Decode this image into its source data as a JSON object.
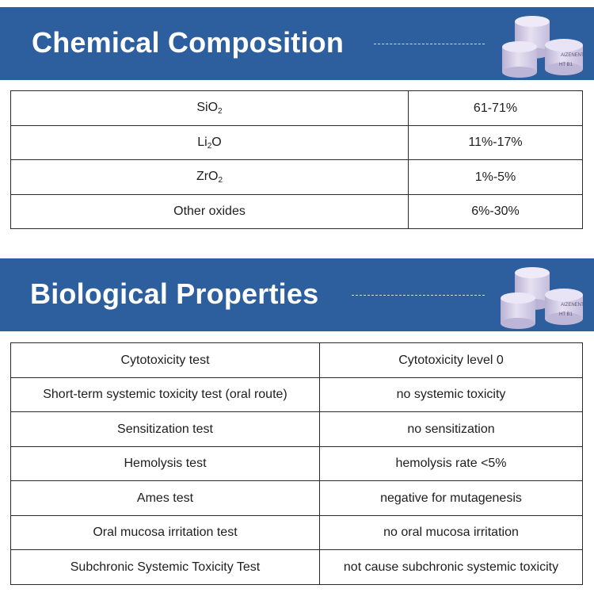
{
  "chemical": {
    "title": "Chemical Composition",
    "puck_label": "AIZENENT",
    "puck_shade": "HT B1",
    "rows": [
      {
        "formula": "SiO",
        "sub": "2",
        "tail": "",
        "value": "61-71%"
      },
      {
        "formula": "Li",
        "sub": "2",
        "tail": "O",
        "value": "11%-17%"
      },
      {
        "formula": "ZrO",
        "sub": "2",
        "tail": "",
        "value": "1%-5%"
      },
      {
        "formula": "Other oxides",
        "sub": "",
        "tail": "",
        "value": "6%-30%"
      }
    ]
  },
  "biological": {
    "title": "Biological Properties",
    "puck_label": "AIZENENT",
    "puck_shade": "HT B1",
    "rows": [
      {
        "test": "Cytotoxicity test",
        "result": "Cytotoxicity level 0"
      },
      {
        "test": "Short-term systemic toxicity test (oral route)",
        "result": "no systemic toxicity"
      },
      {
        "test": "Sensitization test",
        "result": "no sensitization"
      },
      {
        "test": "Hemolysis test",
        "result": "hemolysis rate <5%"
      },
      {
        "test": "Ames test",
        "result": "negative for mutagenesis"
      },
      {
        "test": "Oral mucosa irritation test",
        "result": "no oral mucosa irritation"
      },
      {
        "test": "Subchronic Systemic Toxicity Test",
        "result": "not cause subchronic systemic toxicity"
      }
    ]
  },
  "colors": {
    "banner": "#2d5e9e",
    "puck": "#d9d3ea"
  }
}
